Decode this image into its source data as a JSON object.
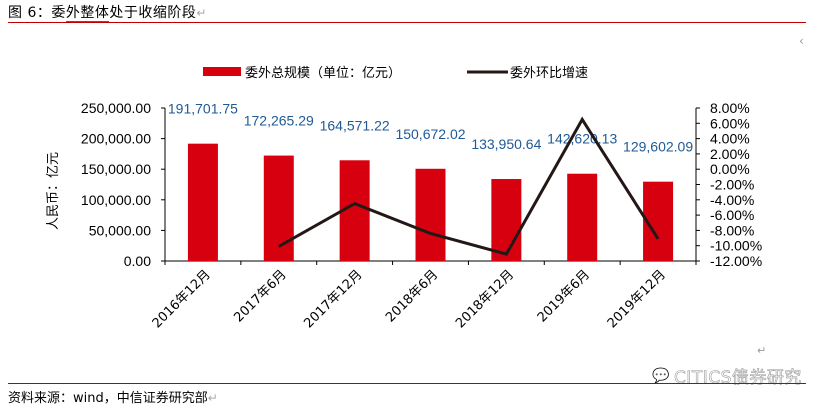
{
  "caption": {
    "prefix": "图 6：委",
    "underlined": "外整体",
    "suffix": "处于收缩阶段",
    "return_mark": "↵"
  },
  "source": {
    "text": "资料来源：wind，中信证券研究部",
    "return_mark": "↵"
  },
  "watermark": {
    "text": "CITICS债券研究"
  },
  "colors": {
    "bar": "#d7000f",
    "line": "#231815",
    "data_label": "#1f5a96",
    "rule": "#c00000"
  },
  "chart_data": {
    "type": "bar+line",
    "title": "委外整体处于收缩阶段",
    "categories": [
      "2016年12月",
      "2017年6月",
      "2017年12月",
      "2018年6月",
      "2018年12月",
      "2019年6月",
      "2019年12月"
    ],
    "series": [
      {
        "name": "委外总规模（单位：亿元）",
        "type": "bar",
        "axis": "left",
        "values": [
          191701.75,
          172265.29,
          164571.22,
          150672.02,
          133950.64,
          142620.13,
          129602.09
        ],
        "labels": [
          "191,701.75",
          "172,265.29",
          "164,571.22",
          "150,672.02",
          "133,950.64",
          "142,620.13",
          "129,602.09"
        ]
      },
      {
        "name": "委外环比增速",
        "type": "line",
        "axis": "right",
        "unit": "%",
        "values": [
          null,
          -10.1,
          -4.5,
          -8.4,
          -11.1,
          6.5,
          -9.1
        ]
      }
    ],
    "ylabel": "人民币：亿元",
    "ylim": [
      0,
      250000
    ],
    "yticks": [
      "250,000.00",
      "200,000.00",
      "150,000.00",
      "100,000.00",
      "50,000.00",
      "0.00"
    ],
    "y2lim": [
      -12,
      8
    ],
    "y2ticks": [
      "8.00%",
      "6.00%",
      "4.00%",
      "2.00%",
      "0.00%",
      "-2.00%",
      "-4.00%",
      "-6.00%",
      "-8.00%",
      "-10.00%",
      "-12.00%"
    ],
    "legend_position": "top",
    "grid": false
  }
}
